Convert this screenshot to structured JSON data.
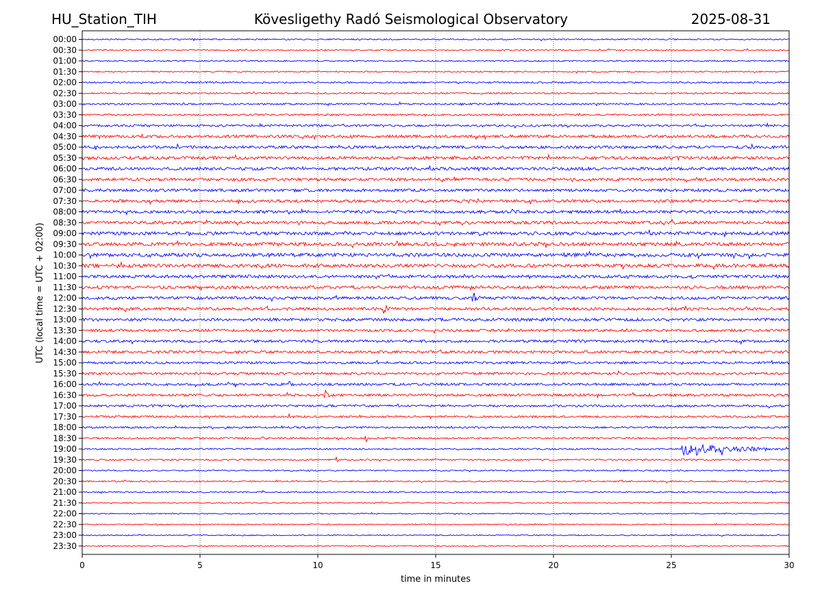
{
  "header": {
    "station": "HU_Station_TIH",
    "observatory": "Kövesligethy Radó Seismological Observatory",
    "date": "2025-08-31"
  },
  "chart_data": {
    "type": "line",
    "title": "Kövesligethy Radó Seismological Observatory",
    "xlabel": "time in minutes",
    "ylabel": "UTC (local time = UTC + 02:00)",
    "xlim": [
      0,
      30
    ],
    "x_ticks": [
      "0",
      "5",
      "10",
      "15",
      "20",
      "25",
      "30"
    ],
    "x_grid": "dotted vertical lines at 5-minute intervals",
    "row_labels": [
      "00:00",
      "00:30",
      "01:00",
      "01:30",
      "02:00",
      "02:30",
      "03:00",
      "03:30",
      "04:00",
      "04:30",
      "05:00",
      "05:30",
      "06:00",
      "06:30",
      "07:00",
      "07:30",
      "08:00",
      "08:30",
      "09:00",
      "09:30",
      "10:00",
      "10:30",
      "11:00",
      "11:30",
      "12:00",
      "12:30",
      "13:00",
      "13:30",
      "14:00",
      "14:30",
      "15:00",
      "15:30",
      "16:00",
      "16:30",
      "17:00",
      "17:30",
      "18:00",
      "18:30",
      "19:00",
      "19:30",
      "20:00",
      "20:30",
      "21:00",
      "21:30",
      "22:00",
      "22:30",
      "23:00",
      "23:30"
    ],
    "trace_colors": [
      "#0000ff",
      "#ff0000"
    ],
    "noise_level": [
      0.6,
      0.6,
      0.6,
      0.6,
      0.7,
      0.7,
      0.8,
      0.8,
      1.0,
      1.3,
      1.3,
      1.4,
      1.4,
      1.3,
      1.3,
      1.3,
      1.3,
      1.4,
      1.5,
      1.6,
      1.6,
      1.6,
      1.4,
      1.4,
      1.3,
      1.3,
      1.3,
      1.2,
      1.2,
      1.2,
      1.1,
      1.1,
      1.1,
      1.1,
      1.0,
      0.9,
      0.8,
      0.8,
      0.7,
      0.7,
      0.6,
      0.6,
      0.6,
      0.5,
      0.5,
      0.5,
      0.5,
      0.5
    ],
    "events": [
      {
        "row": "11:30",
        "minute": 5.0,
        "amplitude": 2.0
      },
      {
        "row": "12:00",
        "minute": 16.6,
        "amplitude": 3.5
      },
      {
        "row": "12:30",
        "minute": 12.8,
        "amplitude": 2.3
      },
      {
        "row": "13:00",
        "minute": 25.2,
        "amplitude": 1.8
      },
      {
        "row": "16:00",
        "minute": 8.8,
        "amplitude": 2.3
      },
      {
        "row": "16:30",
        "minute": 10.3,
        "amplitude": 2.5
      },
      {
        "row": "17:30",
        "minute": 8.8,
        "amplitude": 1.8
      },
      {
        "row": "18:00",
        "minute": 8.9,
        "amplitude": 1.2
      },
      {
        "row": "18:30",
        "minute": 6.9,
        "amplitude": 2.0
      },
      {
        "row": "18:30",
        "minute": 12.0,
        "amplitude": 1.8
      },
      {
        "row": "18:30",
        "minute": 7.7,
        "amplitude": 1.0
      },
      {
        "row": "19:00",
        "minute": 25.5,
        "amplitude": 3.5,
        "duration": 5.0
      },
      {
        "row": "19:00",
        "minute": 27.2,
        "amplitude": 3.0
      },
      {
        "row": "19:30",
        "minute": 10.8,
        "amplitude": 1.5
      },
      {
        "row": "19:30",
        "minute": 25.5,
        "amplitude": 1.2
      },
      {
        "row": "10:30",
        "minute": 29.8,
        "amplitude": 1.8
      },
      {
        "row": "10:00",
        "minute": 21.3,
        "amplitude": 1.8
      },
      {
        "row": "09:30",
        "minute": 8.3,
        "amplitude": 1.5
      }
    ]
  }
}
